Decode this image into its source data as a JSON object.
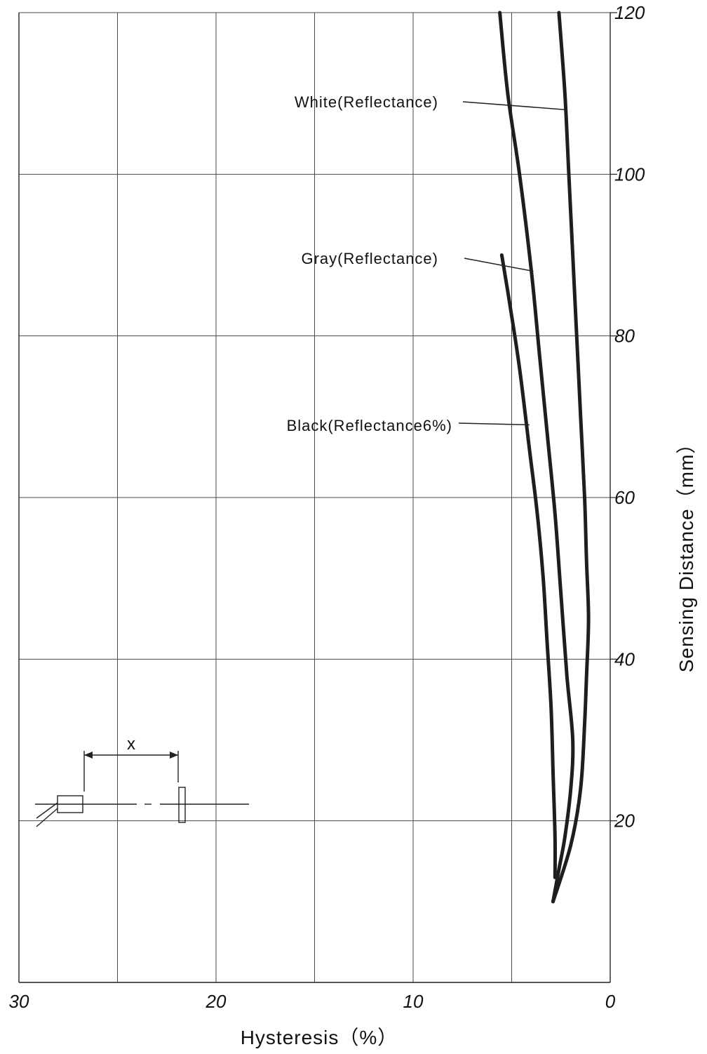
{
  "chart_data": {
    "type": "line",
    "xlabel": "Hysteresis（%）",
    "ylabel": "Sensing Distance（mm）",
    "xlim": [
      30,
      0
    ],
    "ylim": [
      0,
      120
    ],
    "x_ticks": [
      30,
      20,
      10,
      0
    ],
    "y_ticks": [
      20,
      40,
      60,
      80,
      100,
      120
    ],
    "x_grid": [
      30,
      25,
      20,
      15,
      10,
      5,
      0
    ],
    "y_grid": [
      0,
      20,
      40,
      60,
      80,
      100,
      120
    ],
    "grid": true,
    "series": [
      {
        "name": "White(Reflectance)",
        "points": [
          [
            5.6,
            120
          ],
          [
            5.2,
            110
          ],
          [
            4.6,
            100
          ],
          [
            4.0,
            88
          ],
          [
            3.6,
            78
          ],
          [
            3.2,
            68
          ],
          [
            2.8,
            58
          ],
          [
            2.5,
            48
          ],
          [
            2.2,
            38
          ],
          [
            1.9,
            30
          ],
          [
            2.0,
            24
          ],
          [
            2.3,
            18
          ],
          [
            2.6,
            14
          ],
          [
            2.9,
            10
          ]
        ]
      },
      {
        "name": "Gray(Reflectance)",
        "points": [
          [
            2.6,
            120
          ],
          [
            2.3,
            110
          ],
          [
            2.1,
            100
          ],
          [
            1.9,
            90
          ],
          [
            1.7,
            80
          ],
          [
            1.5,
            70
          ],
          [
            1.3,
            60
          ],
          [
            1.2,
            52
          ],
          [
            1.1,
            45
          ],
          [
            1.2,
            38
          ],
          [
            1.3,
            32
          ],
          [
            1.5,
            24
          ],
          [
            2.0,
            17
          ],
          [
            2.9,
            10
          ]
        ]
      },
      {
        "name": "Black(Reflectance6%)",
        "points": [
          [
            5.5,
            90
          ],
          [
            5.1,
            84
          ],
          [
            4.6,
            76
          ],
          [
            4.1,
            66
          ],
          [
            3.7,
            58
          ],
          [
            3.4,
            50
          ],
          [
            3.2,
            42
          ],
          [
            3.0,
            34
          ],
          [
            2.9,
            26
          ],
          [
            2.8,
            18
          ],
          [
            2.8,
            13
          ]
        ]
      }
    ],
    "annotations": [
      {
        "text": "White(Reflectance)",
        "target_x": 2.3,
        "target_y": 108,
        "anchor": "left-middle"
      },
      {
        "text": "Gray(Reflectance)",
        "target_x": 3.9,
        "target_y": 88,
        "anchor": "left-middle"
      },
      {
        "text": "Black(Reflectance6%)",
        "target_x": 4.1,
        "target_y": 69,
        "anchor": "left-middle"
      }
    ],
    "inset": {
      "label": "x",
      "description_icon": "sensor-distance-diagram"
    }
  }
}
